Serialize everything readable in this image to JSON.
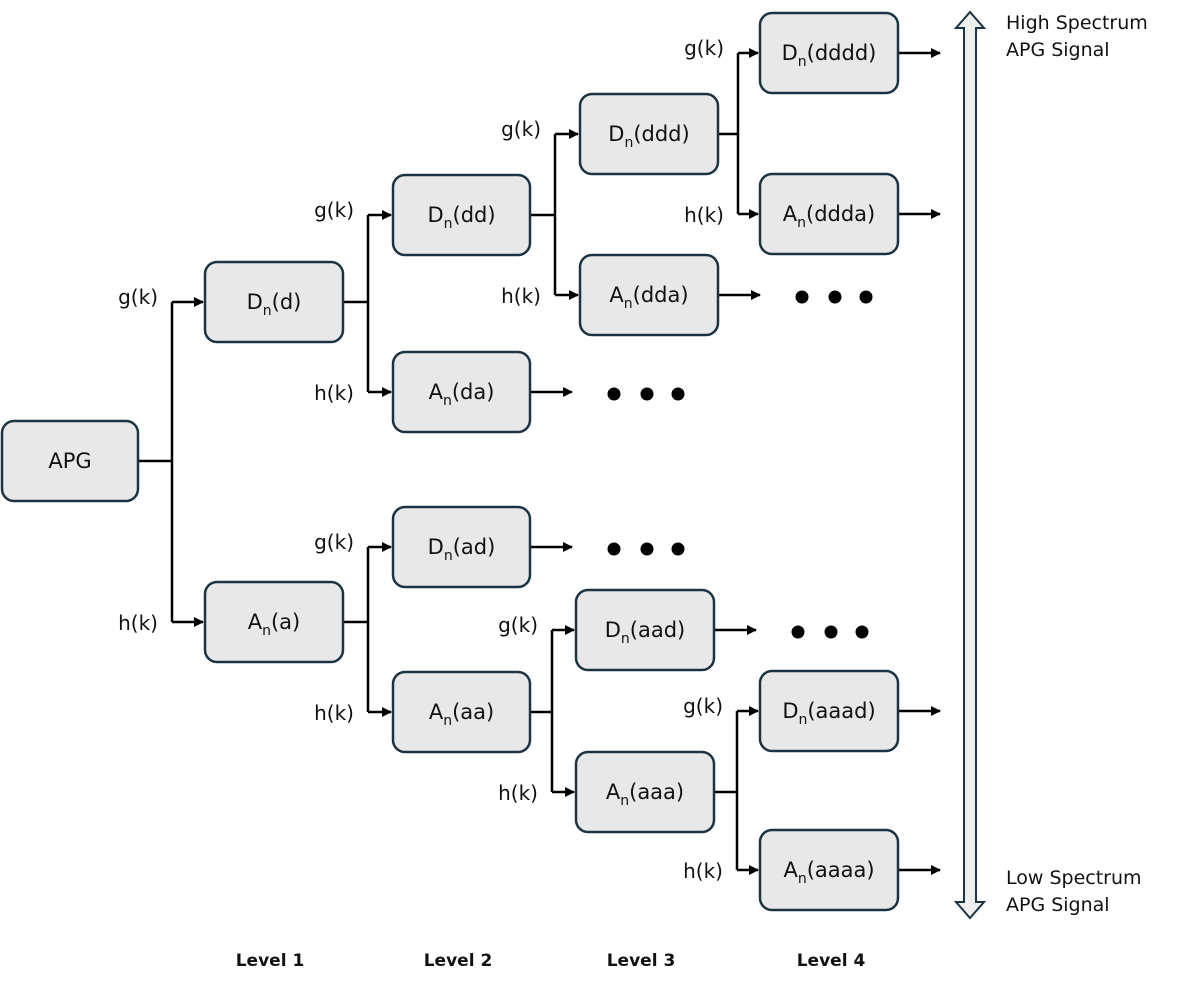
{
  "colors": {
    "box_fill": "#e8e8e8",
    "box_border": "#1c3442",
    "line": "#000000",
    "spectrum_arrow_fill": "#eeeeee"
  },
  "filters": {
    "high": "g(k)",
    "low": "h(k)"
  },
  "continuation_marker": "• • •",
  "nodes": {
    "apg": {
      "text": "APG"
    },
    "d": {
      "main": "D",
      "sub": "n",
      "suffix": "(d)"
    },
    "a": {
      "main": "A",
      "sub": "n",
      "suffix": "(a)"
    },
    "dd": {
      "main": "D",
      "sub": "n",
      "suffix": "(dd)"
    },
    "da": {
      "main": "A",
      "sub": "n",
      "suffix": "(da)"
    },
    "ad": {
      "main": "D",
      "sub": "n",
      "suffix": "(ad)"
    },
    "aa": {
      "main": "A",
      "sub": "n",
      "suffix": "(aa)"
    },
    "ddd": {
      "main": "D",
      "sub": "n",
      "suffix": "(ddd)"
    },
    "dda": {
      "main": "A",
      "sub": "n",
      "suffix": "(dda)"
    },
    "aad": {
      "main": "D",
      "sub": "n",
      "suffix": "(aad)"
    },
    "aaa": {
      "main": "A",
      "sub": "n",
      "suffix": "(aaa)"
    },
    "dddd": {
      "main": "D",
      "sub": "n",
      "suffix": "(dddd)"
    },
    "ddda": {
      "main": "A",
      "sub": "n",
      "suffix": "(ddda)"
    },
    "aaad": {
      "main": "D",
      "sub": "n",
      "suffix": "(aaad)"
    },
    "aaaa": {
      "main": "A",
      "sub": "n",
      "suffix": "(aaaa)"
    }
  },
  "tree": [
    {
      "parent": "apg",
      "high": "d",
      "low": "a"
    },
    {
      "parent": "d",
      "high": "dd",
      "low": "da"
    },
    {
      "parent": "a",
      "high": "ad",
      "low": "aa"
    },
    {
      "parent": "dd",
      "high": "ddd",
      "low": "dda"
    },
    {
      "parent": "aa",
      "high": "aad",
      "low": "aaa"
    },
    {
      "parent": "ddd",
      "high": "dddd",
      "low": "ddda"
    },
    {
      "parent": "aaa",
      "high": "aaad",
      "low": "aaaa"
    }
  ],
  "continued": [
    "da",
    "ad",
    "dda",
    "aad"
  ],
  "outputs": [
    "dddd",
    "ddda",
    "aaad",
    "aaaa"
  ],
  "spectrum": {
    "high": [
      "High Spectrum",
      "APG Signal"
    ],
    "low": [
      "Low Spectrum",
      "APG Signal"
    ]
  },
  "levels": [
    "Level 1",
    "Level 2",
    "Level 3",
    "Level 4"
  ]
}
